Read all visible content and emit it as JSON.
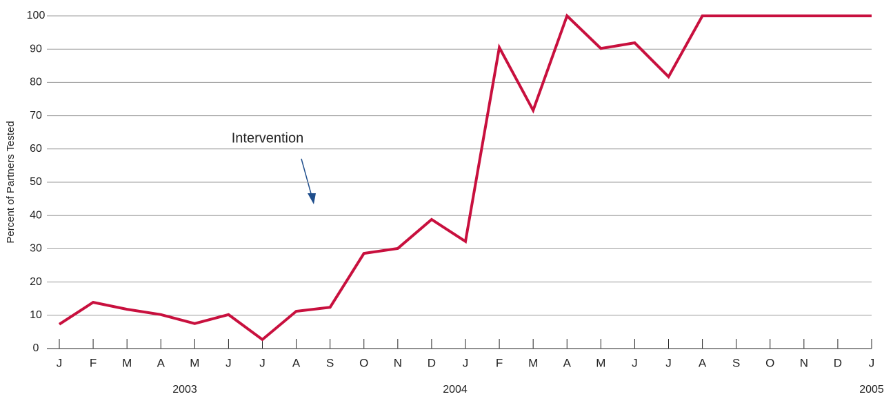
{
  "chart_data": {
    "type": "line",
    "y_label": "Percent of Partners Tested",
    "annotation": "Intervention",
    "x": [
      "J",
      "F",
      "M",
      "A",
      "M",
      "J",
      "J",
      "A",
      "S",
      "O",
      "N",
      "D",
      "J",
      "F",
      "M",
      "A",
      "M",
      "J",
      "J",
      "A",
      "S",
      "O",
      "N",
      "D",
      "J"
    ],
    "x_group_labels": [
      "2003",
      "2004",
      "2005"
    ],
    "series": [
      {
        "name": "Percent of Partners Tested",
        "color": "#c8103e",
        "values": [
          7.3,
          13.9,
          11.8,
          10.2,
          7.5,
          10.2,
          2.7,
          11.2,
          12.4,
          28.6,
          30.1,
          38.8,
          32.2,
          90.5,
          71.6,
          100,
          90.2,
          91.9,
          81.7,
          100,
          100,
          100,
          100,
          100,
          100
        ]
      }
    ],
    "ylim": [
      0,
      100
    ],
    "yticks": [
      0,
      10,
      20,
      30,
      40,
      50,
      60,
      70,
      80,
      90,
      100
    ],
    "grid": true
  }
}
